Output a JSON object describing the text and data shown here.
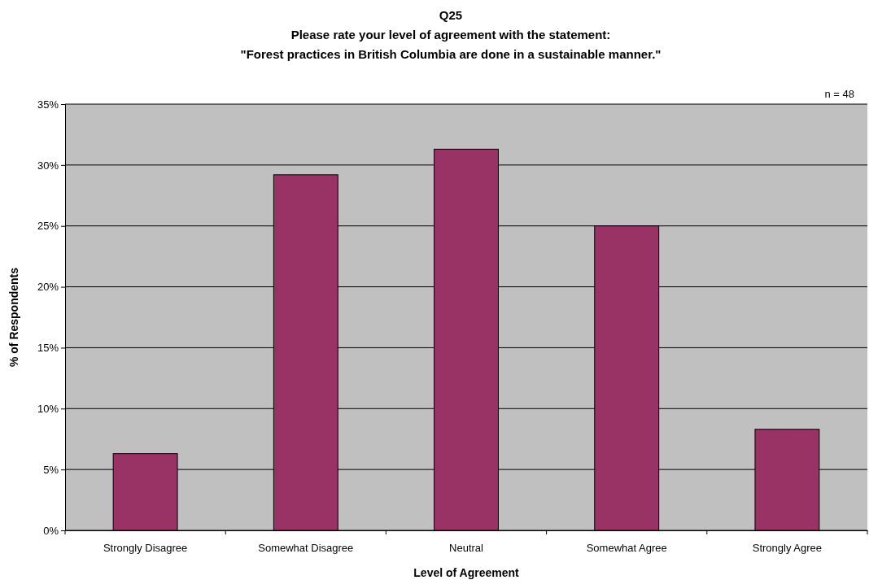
{
  "chart_data": {
    "type": "bar",
    "title": "Q25",
    "subtitle": "Please rate your level of agreement with the statement:\n\"Forest practices in British Columbia are done in a sustainable manner.\"",
    "xlabel": "Level of Agreement",
    "ylabel": "% of Respondents",
    "categories": [
      "Strongly Disagree",
      "Somewhat Disagree",
      "Neutral",
      "Somewhat Agree",
      "Strongly Agree"
    ],
    "values": [
      6.3,
      29.2,
      31.3,
      25.0,
      8.3
    ],
    "color": "#993366",
    "ylim": [
      0,
      35
    ],
    "yticks": [
      {
        "value": 0,
        "label": "0%"
      },
      {
        "value": 5,
        "label": "5%"
      },
      {
        "value": 10,
        "label": "10%"
      },
      {
        "value": 15,
        "label": "15%"
      },
      {
        "value": 20,
        "label": "20%"
      },
      {
        "value": 25,
        "label": "25%"
      },
      {
        "value": 30,
        "label": "30%"
      },
      {
        "value": 35,
        "label": "35%"
      }
    ],
    "grid": "y",
    "annotations": [
      "n = 48"
    ]
  }
}
